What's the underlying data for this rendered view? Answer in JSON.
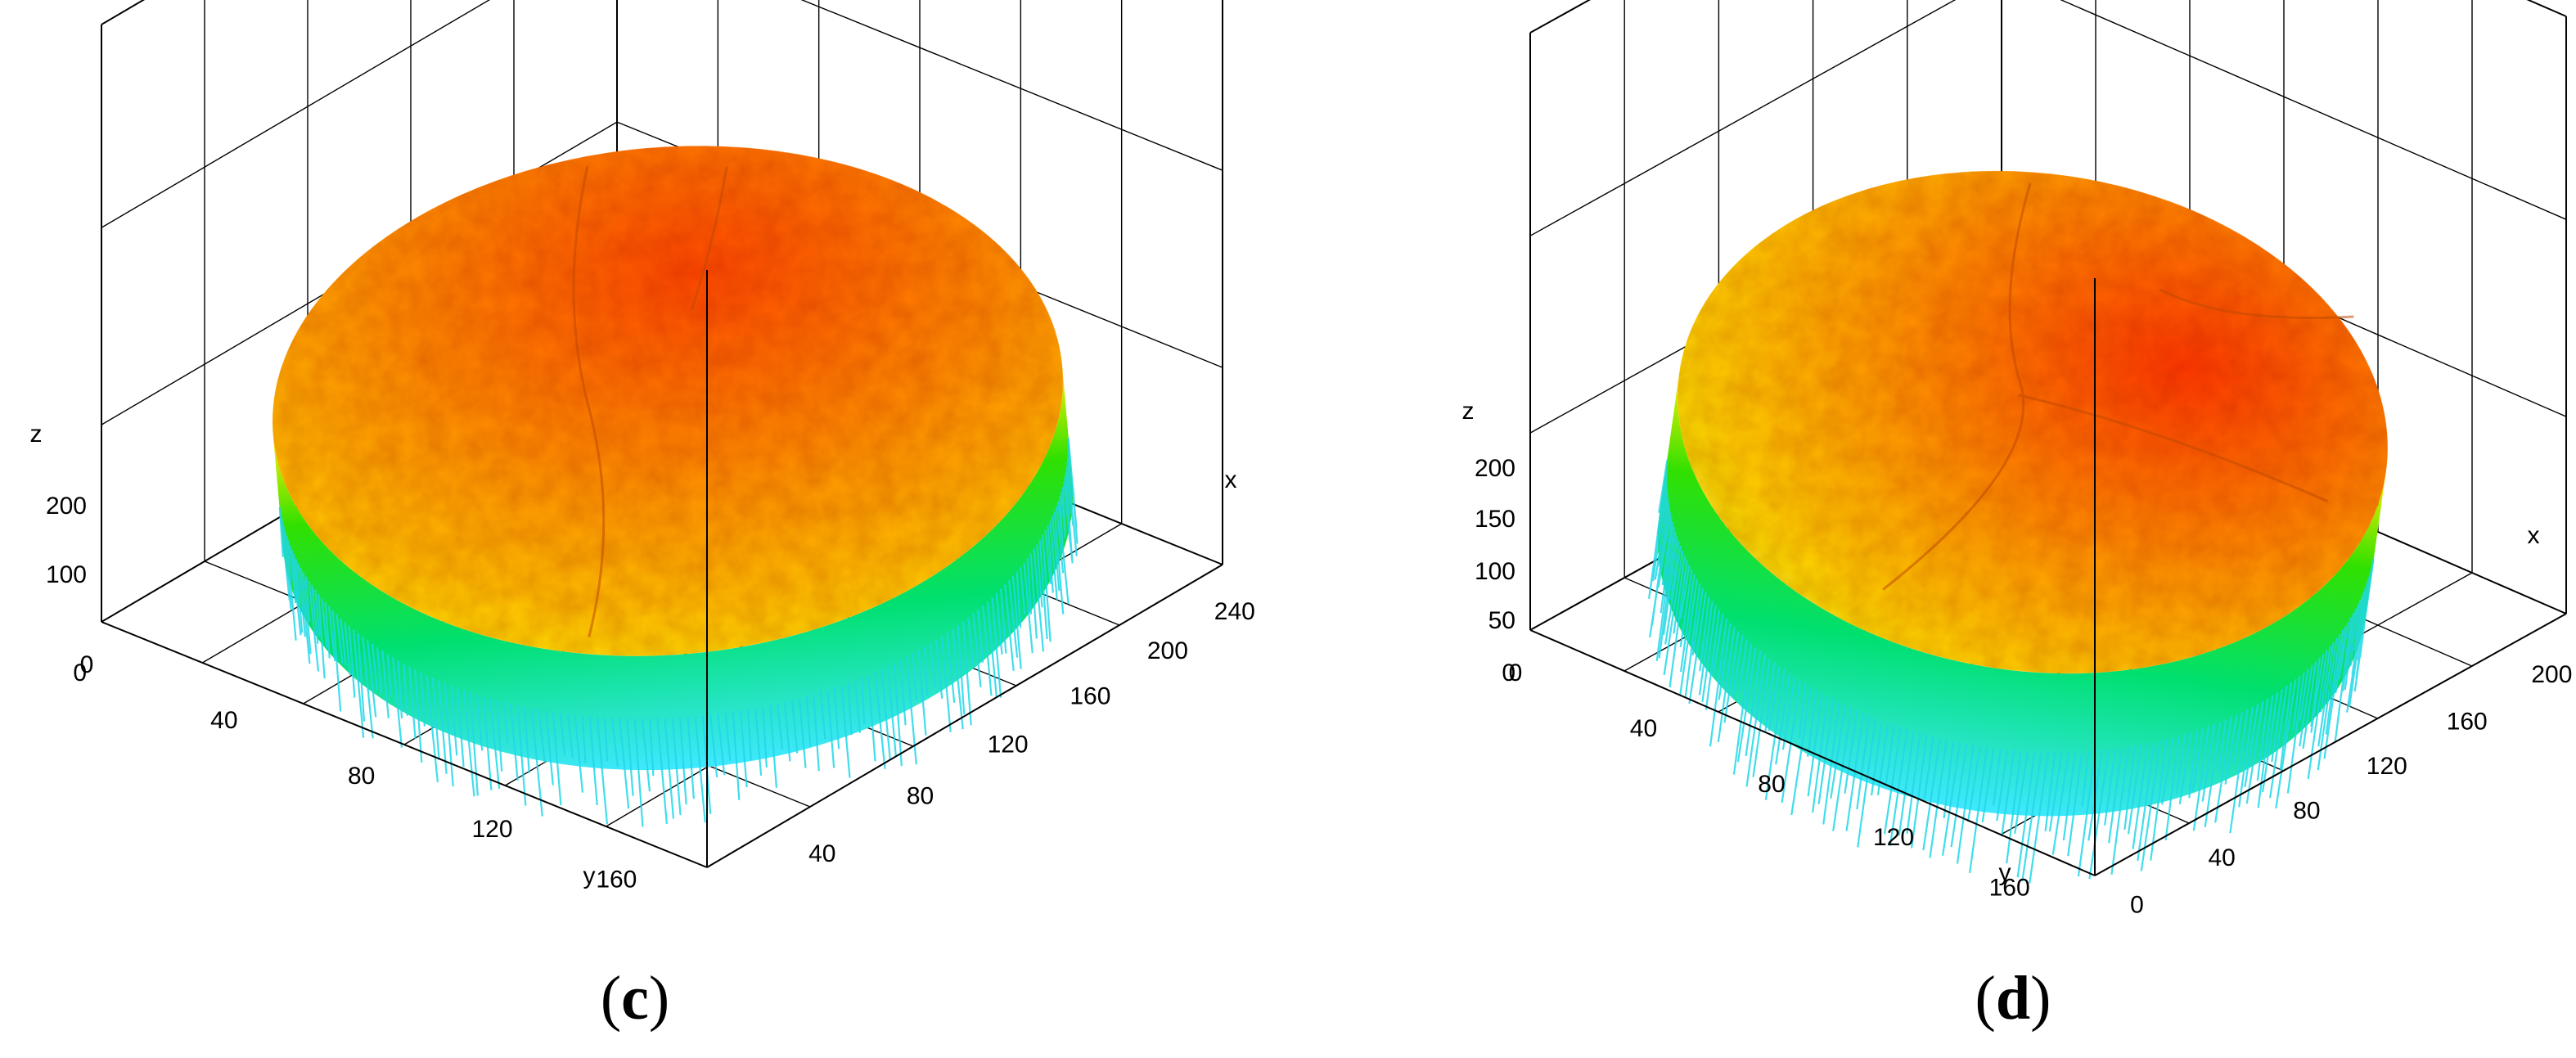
{
  "chart_data": [
    {
      "type": "surface3d",
      "panel_label": "c",
      "axes": {
        "x": {
          "label": "x",
          "ticks": [
            "40",
            "80",
            "120",
            "160",
            "200",
            "240"
          ]
        },
        "y": {
          "label": "y",
          "ticks": [
            "0",
            "40",
            "80",
            "120",
            "160"
          ]
        },
        "z": {
          "label": "z",
          "ticks": [
            "0",
            "100",
            "200"
          ]
        }
      },
      "grid": true,
      "colormap": [
        "#00e5ff",
        "#00e000",
        "#ffff00",
        "#ff2a00"
      ],
      "surface": {
        "shape": "disc",
        "approx_height_z": 230,
        "range_x": [
          0,
          260
        ],
        "range_y": [
          0,
          200
        ]
      }
    },
    {
      "type": "surface3d",
      "panel_label": "d",
      "axes": {
        "x": {
          "label": "x",
          "ticks": [
            "0",
            "40",
            "80",
            "120",
            "160",
            "200"
          ]
        },
        "y": {
          "label": "y",
          "ticks": [
            "0",
            "40",
            "80",
            "120",
            "160"
          ]
        },
        "z": {
          "label": "z",
          "ticks": [
            "0",
            "50",
            "100",
            "150",
            "200"
          ]
        }
      },
      "grid": true,
      "colormap": [
        "#00e5ff",
        "#00e000",
        "#ffff00",
        "#ff2a00"
      ],
      "surface": {
        "shape": "disc",
        "approx_height_z": 220,
        "range_x": [
          0,
          240
        ],
        "range_y": [
          0,
          200
        ]
      }
    }
  ]
}
